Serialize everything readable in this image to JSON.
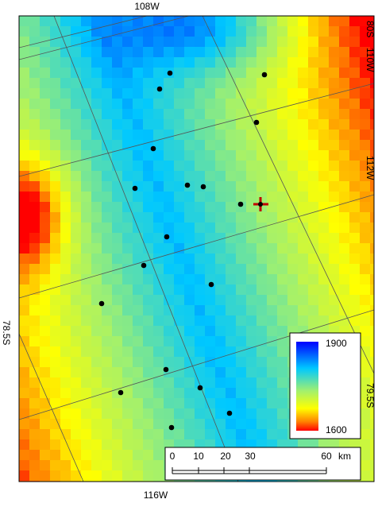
{
  "labels": {
    "top": "108W",
    "right_top_lat": "80S",
    "right_top_lon": "110W",
    "right_mid": "112W",
    "right_bottom": "79.5S",
    "left": "78.5S",
    "bottom": "116W"
  },
  "legend": {
    "max": "1900",
    "min": "1600"
  },
  "scale_bar": {
    "ticks": [
      "0",
      "10",
      "20",
      "30",
      "60"
    ],
    "unit": "km"
  }
}
